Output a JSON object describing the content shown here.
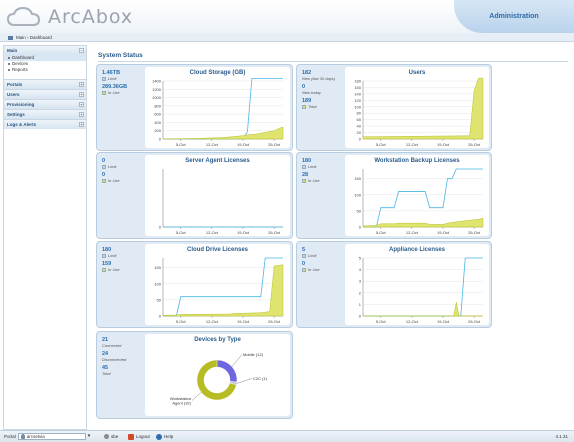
{
  "app": {
    "brand": "ArcAbox",
    "admin_label": "Administration",
    "version": "4.1.31"
  },
  "breadcrumb": "Main › Dashboard",
  "sidebar": {
    "sections": [
      {
        "label": "Main",
        "toggle": "−",
        "items": [
          "Dashboard",
          "Devices",
          "Reports"
        ]
      },
      {
        "label": "Portals",
        "toggle": "+"
      },
      {
        "label": "Users",
        "toggle": "+"
      },
      {
        "label": "Provisioning",
        "toggle": "+"
      },
      {
        "label": "Settings",
        "toggle": "+"
      },
      {
        "label": "Logs & Alerts",
        "toggle": "+"
      }
    ]
  },
  "page_title": "System Status",
  "panels": {
    "cloud_storage": {
      "title": "Cloud Storage (GB)",
      "s1_value": "1.46TB",
      "s1_label": "Limit",
      "s2_value": "289.36GB",
      "s2_label": "In Use"
    },
    "users": {
      "title": "Users",
      "s1_value": "182",
      "s1_label": "New (last 30 days)",
      "s2_value": "0",
      "s2_label": "New today",
      "s3_value": "189",
      "s3_label": "Total"
    },
    "server_agent": {
      "title": "Server Agent Licenses",
      "s1_value": "0",
      "s1_label": "Limit",
      "s2_value": "0",
      "s2_label": "In Use"
    },
    "workstation_backup": {
      "title": "Workstation Backup Licenses",
      "s1_value": "180",
      "s1_label": "Limit",
      "s2_value": "28",
      "s2_label": "In Use"
    },
    "cloud_drive": {
      "title": "Cloud Drive Licenses",
      "s1_value": "180",
      "s1_label": "Limit",
      "s2_value": "159",
      "s2_label": "In Use"
    },
    "appliance": {
      "title": "Appliance Licenses",
      "s1_value": "5",
      "s1_label": "Limit",
      "s2_value": "0",
      "s2_label": "In Use"
    },
    "devices_by_type": {
      "title": "Devices by Type",
      "s1_value": "21",
      "s1_label": "Connected",
      "s2_value": "24",
      "s2_label": "Disconnected",
      "s3_value": "45",
      "s3_label": "Total"
    }
  },
  "chart_data": [
    {
      "type": "area",
      "title": "Cloud Storage (GB)",
      "x_ticks": [
        "5-Oct",
        "12-Oct",
        "19-Oct",
        "26-Oct"
      ],
      "ylim": [
        0,
        1400
      ],
      "y_ticks": [
        0,
        200,
        400,
        600,
        800,
        1000,
        1200,
        1400
      ],
      "x": [
        0,
        4,
        8,
        12,
        14,
        15,
        16,
        17,
        18,
        19,
        20,
        21,
        22,
        23,
        24,
        25,
        26,
        27
      ],
      "series": [
        {
          "name": "Limit",
          "type": "line",
          "values": [
            0,
            0,
            0,
            0,
            0,
            0,
            0,
            0,
            0,
            180,
            1460,
            1460,
            1460,
            1460,
            1460,
            1460,
            1460,
            1460
          ]
        },
        {
          "name": "In Use",
          "type": "area",
          "values": [
            5,
            8,
            15,
            30,
            40,
            50,
            60,
            70,
            80,
            100,
            110,
            120,
            140,
            160,
            180,
            200,
            250,
            289
          ]
        }
      ]
    },
    {
      "type": "area",
      "title": "Users",
      "x_ticks": [
        "5-Oct",
        "12-Oct",
        "19-Oct",
        "26-Oct"
      ],
      "ylim": [
        0,
        180
      ],
      "y_ticks": [
        0,
        20,
        40,
        60,
        80,
        100,
        120,
        140,
        160,
        180
      ],
      "x": [
        0,
        24,
        25,
        26,
        27
      ],
      "series": [
        {
          "name": "Users",
          "type": "area",
          "values": [
            7,
            10,
            150,
            189,
            189
          ]
        }
      ]
    },
    {
      "type": "line",
      "title": "Server Agent Licenses",
      "x_ticks": [
        "5-Oct",
        "12-Oct",
        "19-Oct",
        "26-Oct"
      ],
      "ylim": [
        0,
        1
      ],
      "y_ticks": [
        0
      ],
      "x": [
        0,
        27
      ],
      "series": [
        {
          "name": "In Use",
          "values": [
            0,
            0
          ]
        }
      ]
    },
    {
      "type": "area",
      "title": "Workstation Backup Licenses",
      "x_ticks": [
        "5-Oct",
        "12-Oct",
        "19-Oct",
        "26-Oct"
      ],
      "ylim": [
        0,
        180
      ],
      "y_ticks": [
        0,
        50,
        100,
        150
      ],
      "x": [
        0,
        3,
        4,
        7,
        8,
        14,
        15,
        18,
        19,
        20,
        21,
        22,
        26,
        27
      ],
      "series": [
        {
          "name": "Limit",
          "type": "line",
          "values": [
            0,
            0,
            60,
            60,
            110,
            110,
            60,
            60,
            150,
            150,
            180,
            180,
            180,
            180
          ]
        },
        {
          "name": "In Use",
          "type": "area",
          "values": [
            3,
            5,
            10,
            10,
            12,
            12,
            8,
            8,
            12,
            14,
            16,
            18,
            24,
            28
          ]
        }
      ]
    },
    {
      "type": "area",
      "title": "Cloud Drive Licenses",
      "x_ticks": [
        "5-Oct",
        "12-Oct",
        "19-Oct",
        "26-Oct"
      ],
      "ylim": [
        0,
        180
      ],
      "y_ticks": [
        0,
        50,
        100,
        150
      ],
      "x": [
        0,
        3,
        4,
        15,
        16,
        22,
        23,
        24,
        25,
        27
      ],
      "series": [
        {
          "name": "Limit",
          "type": "line",
          "values": [
            0,
            0,
            60,
            60,
            60,
            60,
            180,
            180,
            180,
            180
          ]
        },
        {
          "name": "In Use",
          "type": "area",
          "values": [
            2,
            3,
            5,
            6,
            8,
            10,
            12,
            14,
            155,
            159
          ]
        }
      ]
    },
    {
      "type": "area",
      "title": "Appliance Licenses",
      "x_ticks": [
        "5-Oct",
        "12-Oct",
        "19-Oct",
        "26-Oct"
      ],
      "ylim": [
        0,
        5
      ],
      "y_ticks": [
        0,
        1,
        2,
        3,
        4,
        5
      ],
      "x": [
        0,
        22,
        23,
        27
      ],
      "series": [
        {
          "name": "Limit",
          "type": "line",
          "values": [
            0,
            0,
            5,
            5
          ]
        },
        {
          "name": "In Use",
          "type": "area",
          "values": [
            0,
            0,
            0,
            0
          ],
          "spike": {
            "x": 21,
            "value": 1.2
          }
        }
      ]
    },
    {
      "type": "pie",
      "title": "Devices by Type",
      "slices": [
        {
          "label": "Mobile (12)",
          "value": 12,
          "color": "#6f67e0"
        },
        {
          "label": "C2C (1)",
          "value": 1,
          "color": "#c7c9d8"
        },
        {
          "label": "Workstation Agent (32)",
          "value": 32,
          "color": "#b6bc22"
        }
      ]
    }
  ],
  "footer": {
    "portal_label": "Portal",
    "portal_value": "arcsetvia",
    "user_label": "sbe",
    "logout_label": "Logout",
    "help_label": "Help"
  },
  "colors": {
    "limit_line": "#49b6e6",
    "in_use_fill": "#dfe36f",
    "in_use_stroke": "#b8c22a",
    "panel_bg": "#dfeaf4",
    "accent": "#2a5c8d"
  }
}
